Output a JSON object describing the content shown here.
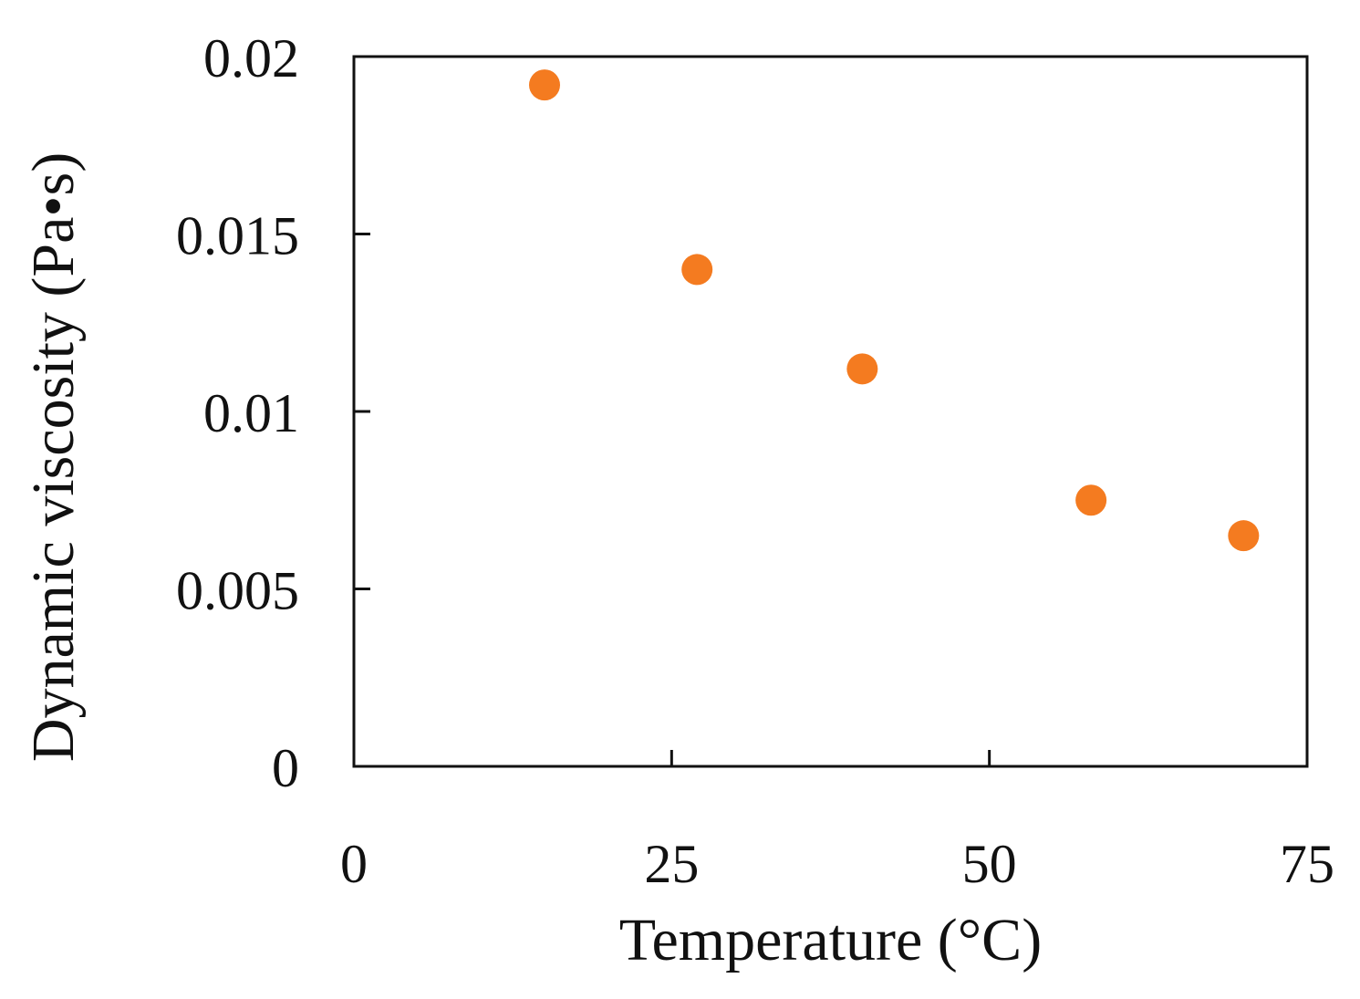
{
  "chart_data": {
    "type": "scatter",
    "title": "",
    "xlabel": "Temperature (°C)",
    "ylabel": "Dynamic viscosity (Pa•s)",
    "xlim": [
      0,
      75
    ],
    "ylim": [
      0,
      0.02
    ],
    "x_ticks": [
      0,
      25,
      50,
      75
    ],
    "x_tick_labels": [
      "0",
      "25",
      "50",
      "75"
    ],
    "y_ticks": [
      0,
      0.005,
      0.01,
      0.015,
      0.02
    ],
    "y_tick_labels": [
      "0",
      "0.005",
      "0.01",
      "0.015",
      "0.02"
    ],
    "grid": false,
    "legend": "none",
    "series": [
      {
        "color": "#f47b20",
        "x": [
          15,
          27,
          40,
          58,
          70
        ],
        "y": [
          0.0192,
          0.014,
          0.0112,
          0.0075,
          0.0065
        ]
      }
    ]
  }
}
